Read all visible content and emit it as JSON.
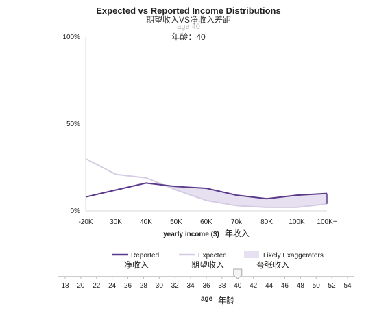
{
  "header": {
    "title": "Expected vs Reported Income Distributions",
    "subtitle_cn": "期望收入VS净收入差距",
    "age_faint": "age 40",
    "age_cn": "年龄：40"
  },
  "chart_data": {
    "type": "line",
    "title": "Expected vs Reported Income Distributions",
    "xlabel": "yearly income ($)",
    "xlabel_cn": "年收入",
    "categories": [
      "-20K",
      "30K",
      "40K",
      "50K",
      "60K",
      "70k",
      "80K",
      "100K",
      "100K+"
    ],
    "yticks": [
      "100%",
      "50%",
      "0%"
    ],
    "ylim": [
      0,
      100
    ],
    "series": [
      {
        "name": "Reported",
        "name_cn": "净收入",
        "color": "#5b3a8c",
        "values": [
          8,
          12,
          16,
          14,
          13,
          9,
          7,
          9,
          10
        ]
      },
      {
        "name": "Expected",
        "name_cn": "期望收入",
        "color": "#d3cce4",
        "values": [
          30,
          21,
          19,
          12,
          6,
          3,
          2,
          2,
          4
        ]
      }
    ],
    "area": {
      "name": "Likely Exaggerators",
      "name_cn": "夸张收入",
      "color": "#e6e0f1"
    },
    "grid": false,
    "legend": "bottom"
  },
  "slider": {
    "label": "age",
    "label_cn": "年龄",
    "ticks": [
      "18",
      "20",
      "22",
      "24",
      "26",
      "28",
      "30",
      "32",
      "34",
      "36",
      "38",
      "40",
      "42",
      "44",
      "46",
      "48",
      "50",
      "52",
      "54"
    ],
    "value": 40
  }
}
